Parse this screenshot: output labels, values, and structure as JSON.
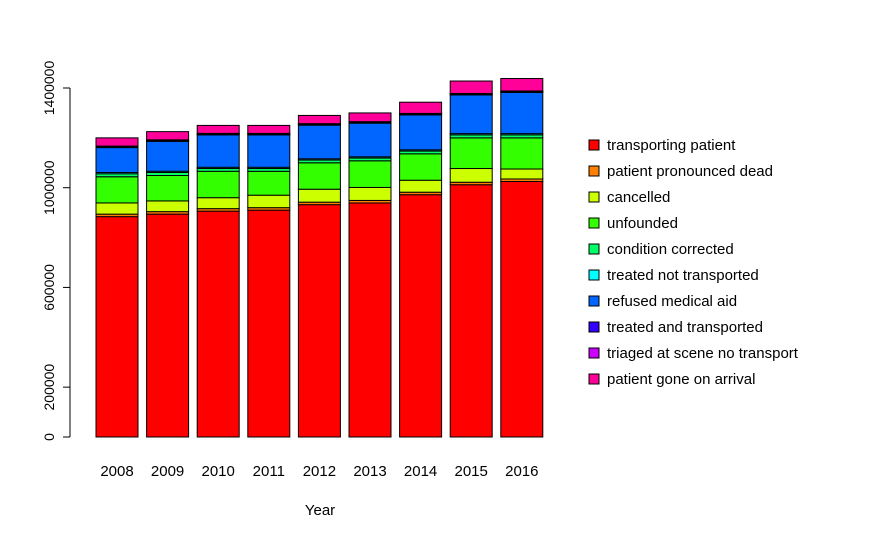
{
  "chart_data": {
    "type": "bar",
    "stacked": true,
    "title": "",
    "xlabel": "Year",
    "ylabel": "",
    "categories": [
      "2008",
      "2009",
      "2010",
      "2011",
      "2012",
      "2013",
      "2014",
      "2015",
      "2016"
    ],
    "ylim": [
      0,
      1400000
    ],
    "yticks": [
      0,
      200000,
      600000,
      1000000,
      1400000
    ],
    "ytick_labels": [
      "0",
      "200000",
      "600000",
      "1000000",
      "1400000"
    ],
    "legend_position": "right",
    "grid": false,
    "series": [
      {
        "name": "transporting patient",
        "color": "#ff0000",
        "values": [
          884000,
          894000,
          906000,
          910000,
          932000,
          939000,
          972000,
          1012000,
          1025000
        ]
      },
      {
        "name": "patient pronounced dead",
        "color": "#ff8000",
        "values": [
          10000,
          10000,
          10000,
          10000,
          10000,
          10000,
          10000,
          10000,
          10000
        ]
      },
      {
        "name": "cancelled",
        "color": "#ccff00",
        "values": [
          45000,
          43000,
          44000,
          50000,
          52000,
          52000,
          48000,
          55000,
          40000
        ]
      },
      {
        "name": "unfounded",
        "color": "#33ff00",
        "values": [
          105000,
          102000,
          106000,
          96000,
          106000,
          107000,
          106000,
          123000,
          125000
        ]
      },
      {
        "name": "condition corrected",
        "color": "#00ff66",
        "values": [
          12000,
          12000,
          11000,
          11000,
          11000,
          11000,
          11000,
          12000,
          12000
        ]
      },
      {
        "name": "treated not transported",
        "color": "#00ffff",
        "values": [
          5000,
          5000,
          5000,
          5000,
          5000,
          5000,
          5000,
          5000,
          5000
        ]
      },
      {
        "name": "refused medical aid",
        "color": "#0066ff",
        "values": [
          100000,
          120000,
          130000,
          130000,
          135000,
          135000,
          140000,
          155000,
          165000
        ]
      },
      {
        "name": "treated and transported",
        "color": "#3300ff",
        "values": [
          4000,
          4000,
          4000,
          4000,
          4000,
          4000,
          4000,
          4000,
          4000
        ]
      },
      {
        "name": "triaged at scene no transport",
        "color": "#cc00ff",
        "values": [
          2000,
          2000,
          2000,
          2000,
          2000,
          2000,
          2000,
          2000,
          2000
        ]
      },
      {
        "name": "patient gone on arrival",
        "color": "#ff0099",
        "values": [
          33000,
          33000,
          32000,
          32000,
          33000,
          35000,
          45000,
          50000,
          50000
        ]
      }
    ]
  }
}
